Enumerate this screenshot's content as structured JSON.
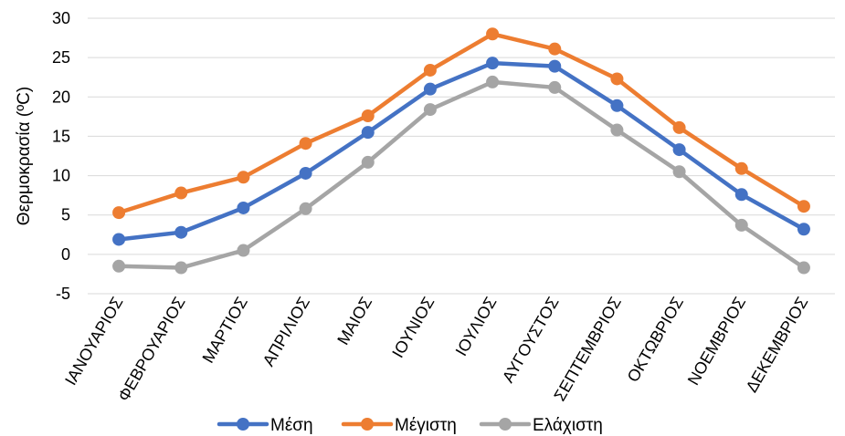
{
  "chart_data": {
    "type": "line",
    "ylabel": "Θερμοκρασία (ºC)",
    "xlabel": "",
    "ylim": [
      -5,
      30
    ],
    "yticks": [
      -5,
      0,
      5,
      10,
      15,
      20,
      25,
      30
    ],
    "grid": true,
    "legend_position": "bottom",
    "categories": [
      "ΙΑΝΟΥΑΡΙΟΣ",
      "ΦΕΒΡΟΥΑΡΙΟΣ",
      "ΜΑΡΤΙΟΣ",
      "ΑΠΡΙΛΙΟΣ",
      "ΜΑΙΟΣ",
      "ΙΟΥΝΙΟΣ",
      "ΙΟΥΛΙΟΣ",
      "ΑΥΓΟΥΣΤΟΣ",
      "ΣΕΠΤΕΜΒΡΙΟΣ",
      "ΟΚΤΩΒΡΙΟΣ",
      "ΝΟΕΜΒΡΙΟΣ",
      "ΔΕΚΕΜΒΡΙΟΣ"
    ],
    "series": [
      {
        "name": "Μέση",
        "color": "#4472C4",
        "values": [
          1.9,
          2.8,
          5.9,
          10.3,
          15.5,
          21.0,
          24.3,
          23.9,
          18.9,
          13.3,
          7.6,
          3.2
        ]
      },
      {
        "name": "Μέγιστη",
        "color": "#ED7D31",
        "values": [
          5.3,
          7.8,
          9.8,
          14.1,
          17.6,
          23.4,
          28.0,
          26.1,
          22.3,
          16.1,
          10.9,
          6.1
        ]
      },
      {
        "name": "Ελάχιστη",
        "color": "#A5A5A5",
        "values": [
          -1.5,
          -1.7,
          0.5,
          5.8,
          11.7,
          18.4,
          21.9,
          21.2,
          15.8,
          10.5,
          3.7,
          -1.7
        ]
      }
    ]
  }
}
